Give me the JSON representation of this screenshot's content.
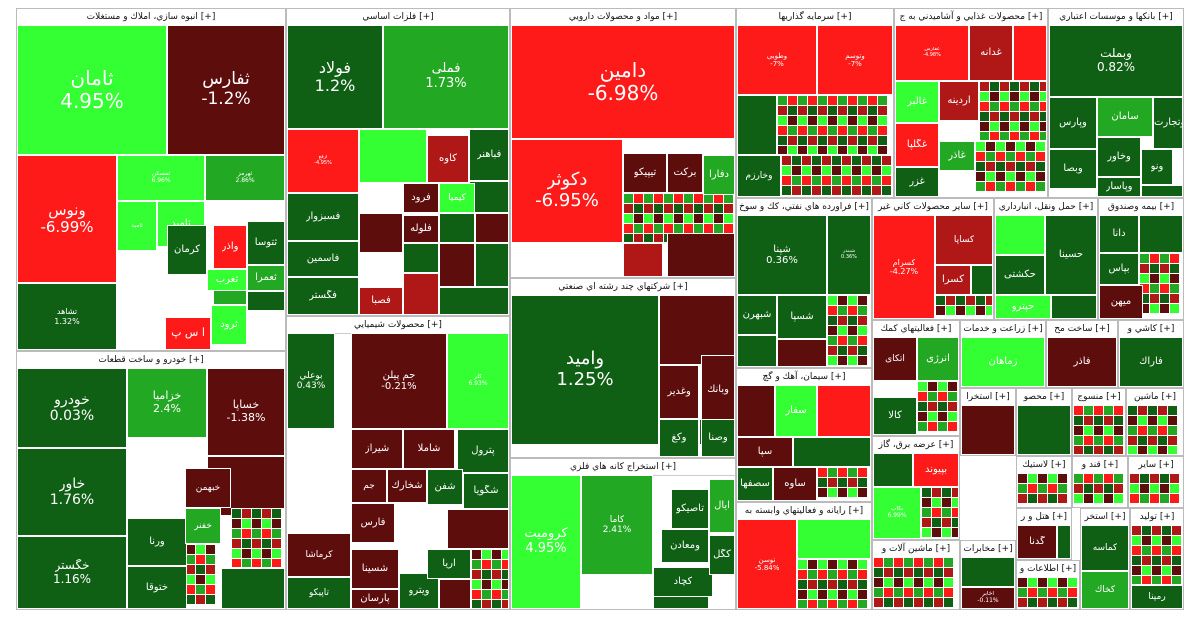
{
  "colors": {
    "up_strong": "#33ff33",
    "up_mid": "#22a822",
    "up_dark": "#0f5f14",
    "down_strong": "#ff1a1a",
    "down_mid": "#b01818",
    "down_dark": "#5e0d0d"
  },
  "sectors": [
    {
      "id": "s1",
      "title": "انبوه سازي، املاك و مستغلات [+]",
      "tiles": [
        {
          "name": "ثامان",
          "pct": "4.95%",
          "color": "up_strong"
        },
        {
          "name": "ثفارس",
          "pct": "-1.2%",
          "color": "down_dark"
        },
        {
          "name": "ونوس",
          "pct": "-6.99%",
          "color": "down_strong"
        },
        {
          "name": "ثمسكن",
          "pct": "6.96%",
          "color": "up_strong"
        },
        {
          "name": "ثهرمز",
          "pct": "2.86%",
          "color": "up_mid"
        },
        {
          "name": "ثامید",
          "pct": "",
          "color": "up_strong"
        },
        {
          "name": "كرمان",
          "pct": "",
          "color": "up_dark"
        },
        {
          "name": "وآذر",
          "pct": "",
          "color": "down_strong"
        },
        {
          "name": "ثتوسا",
          "pct": "",
          "color": "up_dark"
        },
        {
          "name": "تشاهد",
          "pct": "1.32%",
          "color": "up_dark"
        },
        {
          "name": "ثاميد",
          "pct": "",
          "color": "up_strong"
        },
        {
          "name": "ثغرب",
          "pct": "",
          "color": "up_strong"
        },
        {
          "name": "ثعمرا",
          "pct": "",
          "color": "up_mid"
        },
        {
          "name": "آ س پ",
          "pct": "",
          "color": "down_strong"
        },
        {
          "name": "ثرود",
          "pct": "",
          "color": "up_strong"
        }
      ]
    },
    {
      "id": "s2",
      "title": "فلزات اساسي [+]",
      "tiles": [
        {
          "name": "فولاد",
          "pct": "1.2%",
          "color": "up_dark"
        },
        {
          "name": "فملی",
          "pct": "1.73%",
          "color": "up_mid"
        },
        {
          "name": "ارفع",
          "pct": "-4.95%",
          "color": "down_strong"
        },
        {
          "name": "كاوه",
          "pct": "",
          "color": "down_mid"
        },
        {
          "name": "فباهنر",
          "pct": "",
          "color": "up_dark"
        },
        {
          "name": "فسبزوار",
          "pct": "",
          "color": "up_dark"
        },
        {
          "name": "فرود",
          "pct": "",
          "color": "down_dark"
        },
        {
          "name": "فاسمین",
          "pct": "",
          "color": "up_dark"
        },
        {
          "name": "فلوله",
          "pct": "",
          "color": "down_dark"
        },
        {
          "name": "فگستر",
          "pct": "",
          "color": "up_dark"
        },
        {
          "name": "فصبا",
          "pct": "",
          "color": "down_mid"
        },
        {
          "name": "كیمیا",
          "pct": "",
          "color": "up_strong"
        }
      ]
    },
    {
      "id": "s3",
      "title": "مواد و محصولات دارويي [+]",
      "tiles": [
        {
          "name": "دامین",
          "pct": "-6.98%",
          "color": "down_strong"
        },
        {
          "name": "دكوثر",
          "pct": "-6.95%",
          "color": "down_strong"
        },
        {
          "name": "تیپیكو",
          "pct": "",
          "color": "down_dark"
        },
        {
          "name": "بركت",
          "pct": "",
          "color": "down_dark"
        },
        {
          "name": "دفارا",
          "pct": "",
          "color": "up_mid"
        }
      ]
    },
    {
      "id": "s4",
      "title": "شركتهاي چند رشته اي صنعتي [+]",
      "tiles": [
        {
          "name": "وامید",
          "pct": "1.25%",
          "color": "up_dark"
        },
        {
          "name": "وبانك",
          "pct": "",
          "color": "down_dark"
        },
        {
          "name": "وغدير",
          "pct": "",
          "color": "down_dark"
        },
        {
          "name": "وصنا",
          "pct": "",
          "color": "up_dark"
        },
        {
          "name": "وكغ",
          "pct": "",
          "color": "up_dark"
        }
      ]
    },
    {
      "id": "s5",
      "title": "استخراج كانه هاي فلزي [+]",
      "tiles": [
        {
          "name": "كرومیت",
          "pct": "4.95%",
          "color": "up_strong"
        },
        {
          "name": "كاما",
          "pct": "2.41%",
          "color": "up_mid"
        },
        {
          "name": "تاصیكو",
          "pct": "",
          "color": "up_dark"
        },
        {
          "name": "ومعادن",
          "pct": "",
          "color": "up_dark"
        },
        {
          "name": "كچاد",
          "pct": "",
          "color": "up_dark"
        },
        {
          "name": "كگل",
          "pct": "",
          "color": "up_dark"
        },
        {
          "name": "ایال",
          "pct": "",
          "color": "up_mid"
        }
      ]
    },
    {
      "id": "s6",
      "title": "خودرو و ساخت قطعات [+]",
      "tiles": [
        {
          "name": "خودرو",
          "pct": "0.03%",
          "color": "up_dark"
        },
        {
          "name": "خزامیا",
          "pct": "2.4%",
          "color": "up_mid"
        },
        {
          "name": "خساپا",
          "pct": "-1.38%",
          "color": "down_dark"
        },
        {
          "name": "خاور",
          "pct": "1.76%",
          "color": "up_dark"
        },
        {
          "name": "خگستر",
          "pct": "1.16%",
          "color": "up_dark"
        },
        {
          "name": "خبهمن",
          "pct": "",
          "color": "down_dark"
        },
        {
          "name": "ورنا",
          "pct": "",
          "color": "up_dark"
        },
        {
          "name": "ختوقا",
          "pct": "",
          "color": "up_dark"
        },
        {
          "name": "خفنر",
          "pct": "",
          "color": "up_mid"
        }
      ]
    },
    {
      "id": "s7",
      "title": "محصولات شيميايي [+]",
      "tiles": [
        {
          "name": "بوعلي",
          "pct": "0.43%",
          "color": "up_dark"
        },
        {
          "name": "جم پیلن",
          "pct": "-0.21%",
          "color": "down_dark"
        },
        {
          "name": "كلر",
          "pct": "6.93%",
          "color": "up_strong"
        },
        {
          "name": "پترول",
          "pct": "",
          "color": "up_dark"
        },
        {
          "name": "شیراز",
          "pct": "",
          "color": "down_dark"
        },
        {
          "name": "شاملا",
          "pct": "",
          "color": "down_dark"
        },
        {
          "name": "جم",
          "pct": "",
          "color": "down_dark"
        },
        {
          "name": "شخارك",
          "pct": "",
          "color": "down_dark"
        },
        {
          "name": "شفن",
          "pct": "",
          "color": "up_dark"
        },
        {
          "name": "شگویا",
          "pct": "",
          "color": "up_dark"
        },
        {
          "name": "فارس",
          "pct": "",
          "color": "down_dark"
        },
        {
          "name": "كرماشا",
          "pct": "",
          "color": "down_dark"
        },
        {
          "name": "شسینا",
          "pct": "",
          "color": "down_dark"
        },
        {
          "name": "تاپیكو",
          "pct": "",
          "color": "up_dark"
        },
        {
          "name": "پارسان",
          "pct": "",
          "color": "down_dark"
        },
        {
          "name": "ویترو",
          "pct": "",
          "color": "up_dark"
        },
        {
          "name": "آریا",
          "pct": "",
          "color": "up_dark"
        }
      ]
    },
    {
      "id": "s8",
      "title": "سرمايه گذاريها [+]",
      "tiles": [
        {
          "name": "وطوبی",
          "pct": "-7%",
          "color": "down_strong"
        },
        {
          "name": "وتوسم",
          "pct": "-7%",
          "color": "down_strong"
        },
        {
          "name": "وخارزم",
          "pct": "",
          "color": "up_dark"
        }
      ]
    },
    {
      "id": "s9",
      "title": "محصولات غذايي و آشاميدني به ج [+]",
      "tiles": [
        {
          "name": "غفارس",
          "pct": "-4.98%",
          "color": "down_strong"
        },
        {
          "name": "غدانه",
          "pct": "",
          "color": "down_mid"
        },
        {
          "name": "غالبر",
          "pct": "",
          "color": "up_strong"
        },
        {
          "name": "آردینه",
          "pct": "",
          "color": "down_mid"
        },
        {
          "name": "غگلپا",
          "pct": "",
          "color": "down_strong"
        },
        {
          "name": "غزر",
          "pct": "",
          "color": "up_dark"
        },
        {
          "name": "غاذر",
          "pct": "",
          "color": "up_mid"
        }
      ]
    },
    {
      "id": "s10",
      "title": "بانكها و موسسات اعتباري [+]",
      "tiles": [
        {
          "name": "وبملت",
          "pct": "0.82%",
          "color": "up_dark"
        },
        {
          "name": "وتجارت",
          "pct": "",
          "color": "up_dark"
        },
        {
          "name": "وپارس",
          "pct": "",
          "color": "up_dark"
        },
        {
          "name": "سامان",
          "pct": "",
          "color": "up_mid"
        },
        {
          "name": "وخاور",
          "pct": "",
          "color": "up_dark"
        },
        {
          "name": "ونو",
          "pct": "",
          "color": "up_dark"
        },
        {
          "name": "وبصا",
          "pct": "",
          "color": "up_dark"
        },
        {
          "name": "وپاسار",
          "pct": "",
          "color": "up_dark"
        }
      ]
    },
    {
      "id": "s11",
      "title": "فراورده هاي نفتي، كك و سوخ [+]",
      "tiles": [
        {
          "name": "شپنا",
          "pct": "0.36%",
          "color": "up_dark"
        },
        {
          "name": "شبندر",
          "pct": "0.36%",
          "color": "up_dark"
        },
        {
          "name": "شبهرن",
          "pct": "",
          "color": "up_dark"
        },
        {
          "name": "شسپا",
          "pct": "",
          "color": "up_dark"
        }
      ]
    },
    {
      "id": "s12",
      "title": "ساير محصولات كاني غير [+]",
      "tiles": [
        {
          "name": "كسرام",
          "pct": "-4.27%",
          "color": "down_strong"
        },
        {
          "name": "كساپا",
          "pct": "",
          "color": "down_mid"
        },
        {
          "name": "كسرا",
          "pct": "",
          "color": "down_mid"
        }
      ]
    },
    {
      "id": "s13",
      "title": "حمل ونقل، انبارداري [+]",
      "tiles": [
        {
          "name": "حكشتی",
          "pct": "",
          "color": "up_dark"
        },
        {
          "name": "حسینا",
          "pct": "",
          "color": "up_dark"
        },
        {
          "name": "حپترو",
          "pct": "",
          "color": "up_strong"
        }
      ]
    },
    {
      "id": "s14",
      "title": "بيمه وصندوق [+]",
      "tiles": [
        {
          "name": "دانا",
          "pct": "",
          "color": "up_dark"
        },
        {
          "name": "بپاس",
          "pct": "",
          "color": "up_dark"
        },
        {
          "name": "میهن",
          "pct": "",
          "color": "down_dark"
        }
      ]
    },
    {
      "id": "s15",
      "title": "سيمان، آهك و گچ [+]",
      "tiles": [
        {
          "name": "سفار",
          "pct": "",
          "color": "up_strong"
        },
        {
          "name": "سپا",
          "pct": "",
          "color": "down_dark"
        },
        {
          "name": "ساوه",
          "pct": "",
          "color": "down_dark"
        },
        {
          "name": "سصفها",
          "pct": "",
          "color": "up_dark"
        }
      ]
    },
    {
      "id": "s16",
      "title": "رايانه و فعاليتهاي وابسته به [+]",
      "tiles": [
        {
          "name": "توسن",
          "pct": "-5.84%",
          "color": "down_strong"
        }
      ]
    },
    {
      "id": "s17",
      "title": "فعاليتهاي كمك [+]",
      "tiles": [
        {
          "name": "اتكای",
          "pct": "",
          "color": "down_dark"
        },
        {
          "name": "انرژی",
          "pct": "",
          "color": "up_mid"
        },
        {
          "name": "كالا",
          "pct": "",
          "color": "up_dark"
        }
      ]
    },
    {
      "id": "s18",
      "title": "عرضه برق، گاز [+]",
      "tiles": [
        {
          "name": "بپیوند",
          "pct": "",
          "color": "down_strong"
        },
        {
          "name": "بكاب",
          "pct": "6.99%",
          "color": "up_strong"
        }
      ]
    },
    {
      "id": "s19",
      "title": "زراعت و خدمات [+]",
      "tiles": [
        {
          "name": "زماهان",
          "pct": "",
          "color": "up_strong"
        }
      ]
    },
    {
      "id": "s20",
      "title": "ساخت مح [+]",
      "tiles": [
        {
          "name": "فاذر",
          "pct": "",
          "color": "down_dark"
        }
      ]
    },
    {
      "id": "s21",
      "title": "كاشي و [+]",
      "tiles": [
        {
          "name": "فاراك",
          "pct": "",
          "color": "up_dark"
        }
      ]
    },
    {
      "id": "s22",
      "title": "استخرا [+]",
      "tiles": []
    },
    {
      "id": "s23",
      "title": "محصو [+]",
      "tiles": []
    },
    {
      "id": "s24",
      "title": "منسوج [+]",
      "tiles": []
    },
    {
      "id": "s25",
      "title": "ماشين [+]",
      "tiles": []
    },
    {
      "id": "s26",
      "title": "لاستيك [+]",
      "tiles": []
    },
    {
      "id": "s27",
      "title": "قند و [+]",
      "tiles": []
    },
    {
      "id": "s28",
      "title": "ساير [+]",
      "tiles": []
    },
    {
      "id": "s29",
      "title": "هتل و ر [+]",
      "tiles": [
        {
          "name": "گدنا",
          "pct": "",
          "color": "down_dark"
        }
      ]
    },
    {
      "id": "s30",
      "title": "ماشين آلات و [+]",
      "tiles": []
    },
    {
      "id": "s31",
      "title": "مخابرات [+]",
      "tiles": [
        {
          "name": "اخابر",
          "pct": "-0.11%",
          "color": "down_dark"
        }
      ]
    },
    {
      "id": "s32",
      "title": "اطلاعات و [+]",
      "tiles": []
    },
    {
      "id": "s33",
      "title": "استخر [+]",
      "tiles": [
        {
          "name": "کماسه",
          "pct": "",
          "color": "up_dark"
        },
        {
          "name": "كخاك",
          "pct": "",
          "color": "up_mid"
        }
      ]
    },
    {
      "id": "s34",
      "title": "توليد [+]",
      "tiles": [
        {
          "name": "رمپنا",
          "pct": "",
          "color": "up_dark"
        }
      ]
    }
  ]
}
